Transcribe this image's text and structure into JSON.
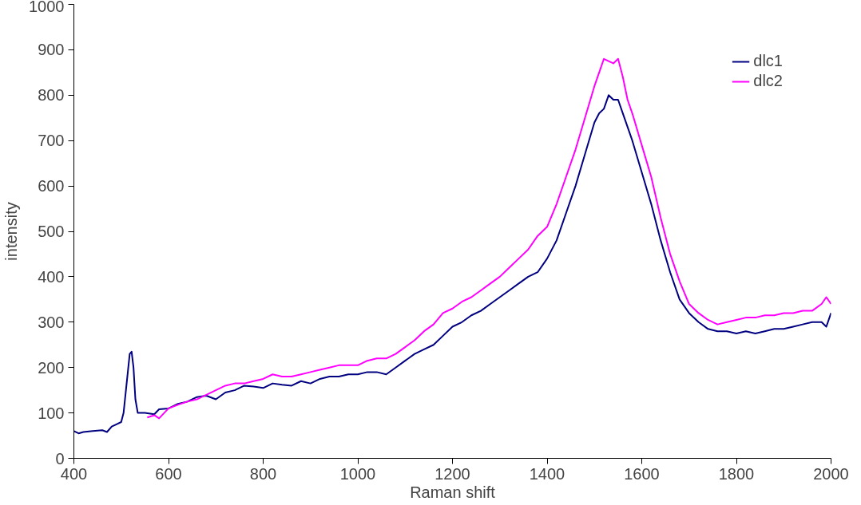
{
  "chart_data": {
    "type": "line",
    "xlabel": "Raman shift",
    "ylabel": "intensity",
    "xlim": [
      400,
      2000
    ],
    "ylim": [
      0,
      1000
    ],
    "xticks": [
      400,
      600,
      800,
      1000,
      1200,
      1400,
      1600,
      1800,
      2000
    ],
    "yticks": [
      0,
      100,
      200,
      300,
      400,
      500,
      600,
      700,
      800,
      900,
      1000
    ],
    "grid": false,
    "legend": "top right",
    "marker": "none",
    "line_style": "solid",
    "series": [
      {
        "name": "dlc1",
        "color": "#000080",
        "x": [
          400,
          410,
          420,
          440,
          460,
          470,
          480,
          490,
          500,
          505,
          510,
          515,
          518,
          522,
          526,
          530,
          535,
          550,
          570,
          580,
          600,
          620,
          640,
          660,
          680,
          700,
          720,
          740,
          760,
          780,
          800,
          820,
          840,
          860,
          880,
          900,
          920,
          940,
          960,
          980,
          1000,
          1020,
          1040,
          1060,
          1080,
          1100,
          1120,
          1140,
          1160,
          1180,
          1200,
          1220,
          1240,
          1260,
          1280,
          1300,
          1320,
          1340,
          1360,
          1380,
          1400,
          1420,
          1440,
          1460,
          1480,
          1500,
          1510,
          1520,
          1530,
          1540,
          1550,
          1560,
          1570,
          1580,
          1600,
          1620,
          1640,
          1660,
          1680,
          1700,
          1720,
          1740,
          1760,
          1780,
          1800,
          1820,
          1840,
          1860,
          1880,
          1900,
          1920,
          1940,
          1960,
          1980,
          1990,
          2000
        ],
        "values": [
          60,
          55,
          58,
          60,
          62,
          58,
          70,
          75,
          80,
          100,
          150,
          200,
          230,
          235,
          200,
          130,
          100,
          100,
          97,
          108,
          110,
          120,
          125,
          135,
          138,
          130,
          145,
          150,
          160,
          158,
          155,
          165,
          162,
          160,
          170,
          165,
          175,
          180,
          180,
          185,
          185,
          190,
          190,
          185,
          200,
          215,
          230,
          240,
          250,
          270,
          290,
          300,
          315,
          325,
          340,
          355,
          370,
          385,
          400,
          410,
          440,
          480,
          540,
          600,
          670,
          740,
          760,
          770,
          800,
          790,
          790,
          760,
          730,
          700,
          630,
          560,
          480,
          410,
          350,
          320,
          300,
          285,
          280,
          280,
          275,
          280,
          275,
          280,
          285,
          285,
          290,
          295,
          300,
          300,
          290,
          320
        ]
      },
      {
        "name": "dlc2",
        "color": "#ff00ff",
        "x": [
          555,
          570,
          580,
          600,
          620,
          640,
          660,
          680,
          700,
          720,
          740,
          760,
          780,
          800,
          820,
          840,
          860,
          880,
          900,
          920,
          940,
          960,
          980,
          1000,
          1020,
          1040,
          1060,
          1080,
          1100,
          1120,
          1140,
          1160,
          1180,
          1200,
          1220,
          1240,
          1260,
          1280,
          1300,
          1320,
          1340,
          1360,
          1380,
          1400,
          1420,
          1440,
          1460,
          1480,
          1500,
          1510,
          1520,
          1530,
          1540,
          1550,
          1560,
          1570,
          1580,
          1600,
          1620,
          1640,
          1660,
          1680,
          1700,
          1720,
          1740,
          1760,
          1780,
          1800,
          1820,
          1840,
          1860,
          1880,
          1900,
          1920,
          1940,
          1960,
          1980,
          1990,
          2000
        ],
        "values": [
          90,
          95,
          88,
          110,
          118,
          125,
          130,
          140,
          150,
          160,
          165,
          165,
          170,
          175,
          185,
          180,
          180,
          185,
          190,
          195,
          200,
          205,
          205,
          205,
          215,
          220,
          220,
          230,
          245,
          260,
          280,
          295,
          320,
          330,
          345,
          355,
          370,
          385,
          400,
          420,
          440,
          460,
          490,
          510,
          560,
          620,
          680,
          750,
          820,
          850,
          880,
          875,
          870,
          880,
          840,
          790,
          760,
          690,
          620,
          530,
          450,
          390,
          340,
          320,
          305,
          295,
          300,
          305,
          310,
          310,
          315,
          315,
          320,
          320,
          325,
          325,
          340,
          355,
          340
        ]
      }
    ]
  }
}
